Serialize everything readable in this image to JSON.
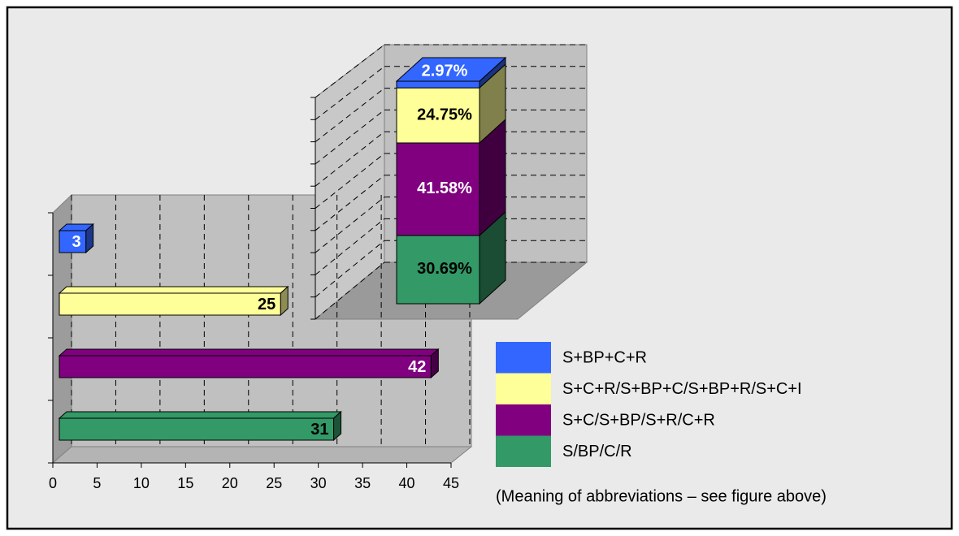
{
  "chart_data": [
    {
      "type": "bar",
      "orientation": "horizontal",
      "categories": [
        null,
        null,
        null,
        null
      ],
      "values": [
        3,
        25,
        42,
        31
      ],
      "colors": [
        "#3366ff",
        "#ffff99",
        "#800080",
        "#339966"
      ],
      "xlim": [
        0,
        45
      ],
      "xticks": [
        0,
        5,
        10,
        15,
        20,
        25,
        30,
        35,
        40,
        45
      ],
      "grid": true
    },
    {
      "type": "stacked_column",
      "ylim": [
        0,
        100
      ],
      "yticks": [
        0,
        10,
        20,
        30,
        40,
        50,
        60,
        70,
        80,
        90,
        100
      ],
      "grid": true,
      "series": [
        {
          "name": "S/BP/C/R",
          "color": "#339966",
          "values": [
            30.69
          ],
          "value_labels": [
            "30.69%"
          ]
        },
        {
          "name": "S+C/S+BP/S+R/C+R",
          "color": "#800080",
          "values": [
            41.58
          ],
          "value_labels": [
            "41.58%"
          ]
        },
        {
          "name": "S+C+R/S+BP+C/S+BP+R/S+C+I",
          "color": "#ffff99",
          "values": [
            24.75
          ],
          "value_labels": [
            "24.75%"
          ]
        },
        {
          "name": "S+BP+C+R",
          "color": "#3366ff",
          "values": [
            2.97
          ],
          "value_labels": [
            "2.97%"
          ]
        }
      ],
      "annotation": "(Meaning of abbreviations – see figure above)"
    }
  ]
}
